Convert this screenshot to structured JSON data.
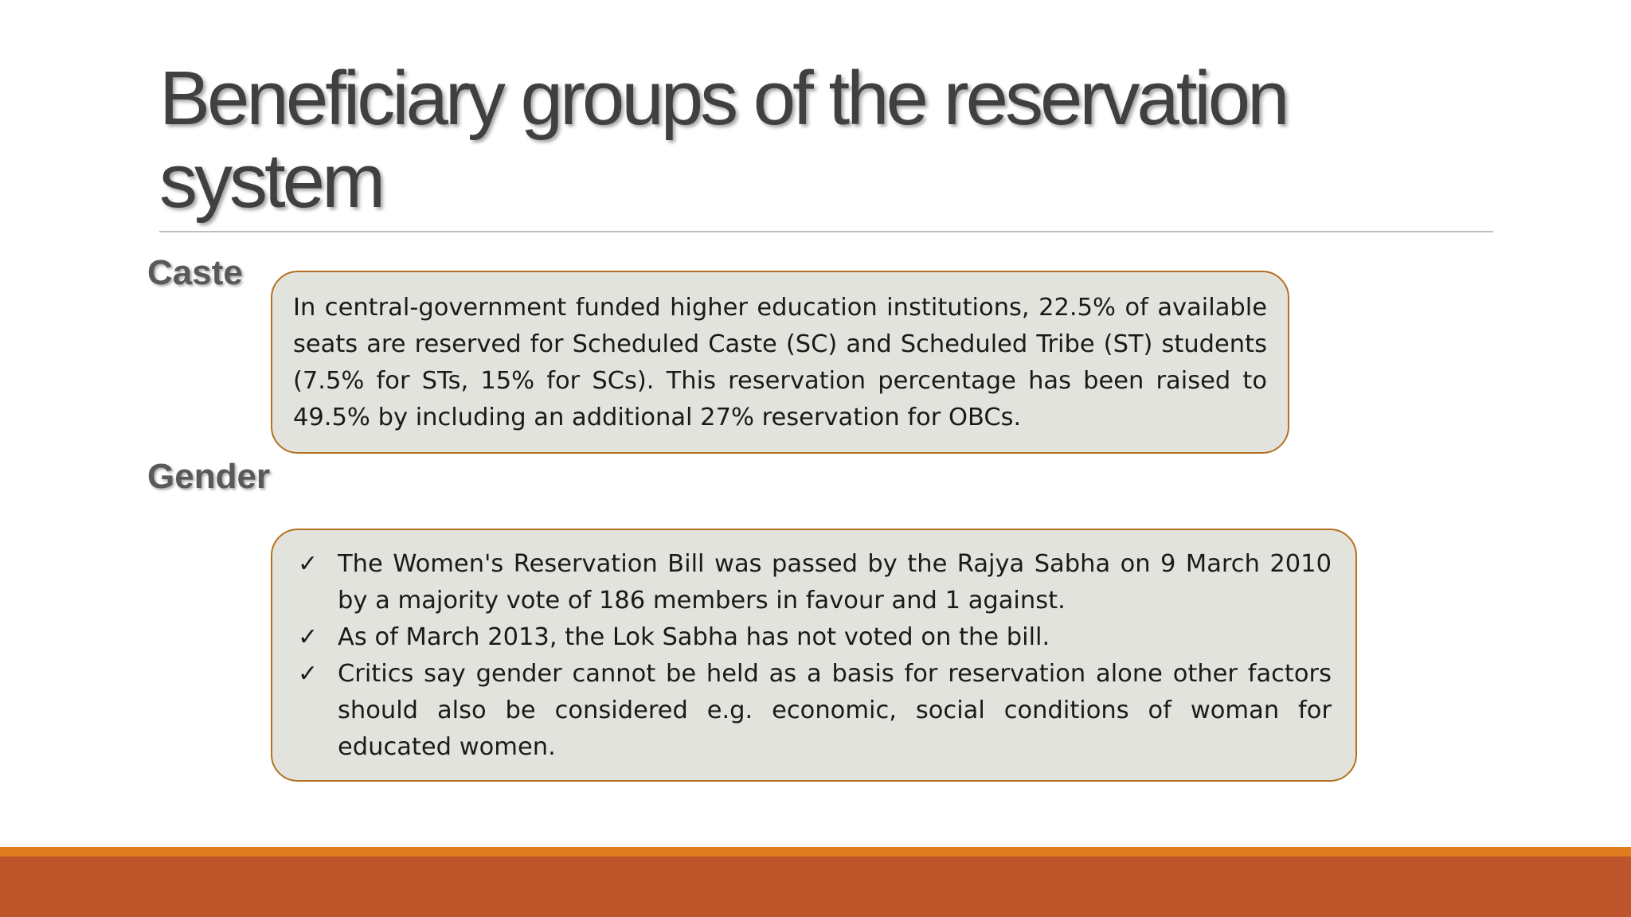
{
  "slide": {
    "title": "Beneficiary groups of the reservation system",
    "sections": {
      "caste": {
        "label": "Caste",
        "text": "In central-government funded higher education institutions, 22.5% of available seats are reserved for Scheduled Caste (SC) and Scheduled Tribe (ST) students (7.5% for STs, 15% for SCs). This reservation percentage has been raised to 49.5% by including an additional 27% reservation for OBCs."
      },
      "gender": {
        "label": "Gender",
        "bullet_symbol": "✓",
        "bullets": [
          "The Women's Reservation Bill was passed by the Rajya Sabha on 9 March 2010 by a majority vote of 186 members in favour and 1 against.",
          "As of March 2013, the Lok Sabha has not voted on the bill.",
          "Critics say gender cannot be held as a basis for reservation alone other factors should also be considered e.g. economic, social conditions of woman for educated women."
        ]
      }
    },
    "colors": {
      "title": "#404040",
      "box_fill": "#e3e3dd",
      "box_border": "#b5711f",
      "footer_orange": "#e07b1f",
      "footer_rust": "#bf552b"
    }
  }
}
